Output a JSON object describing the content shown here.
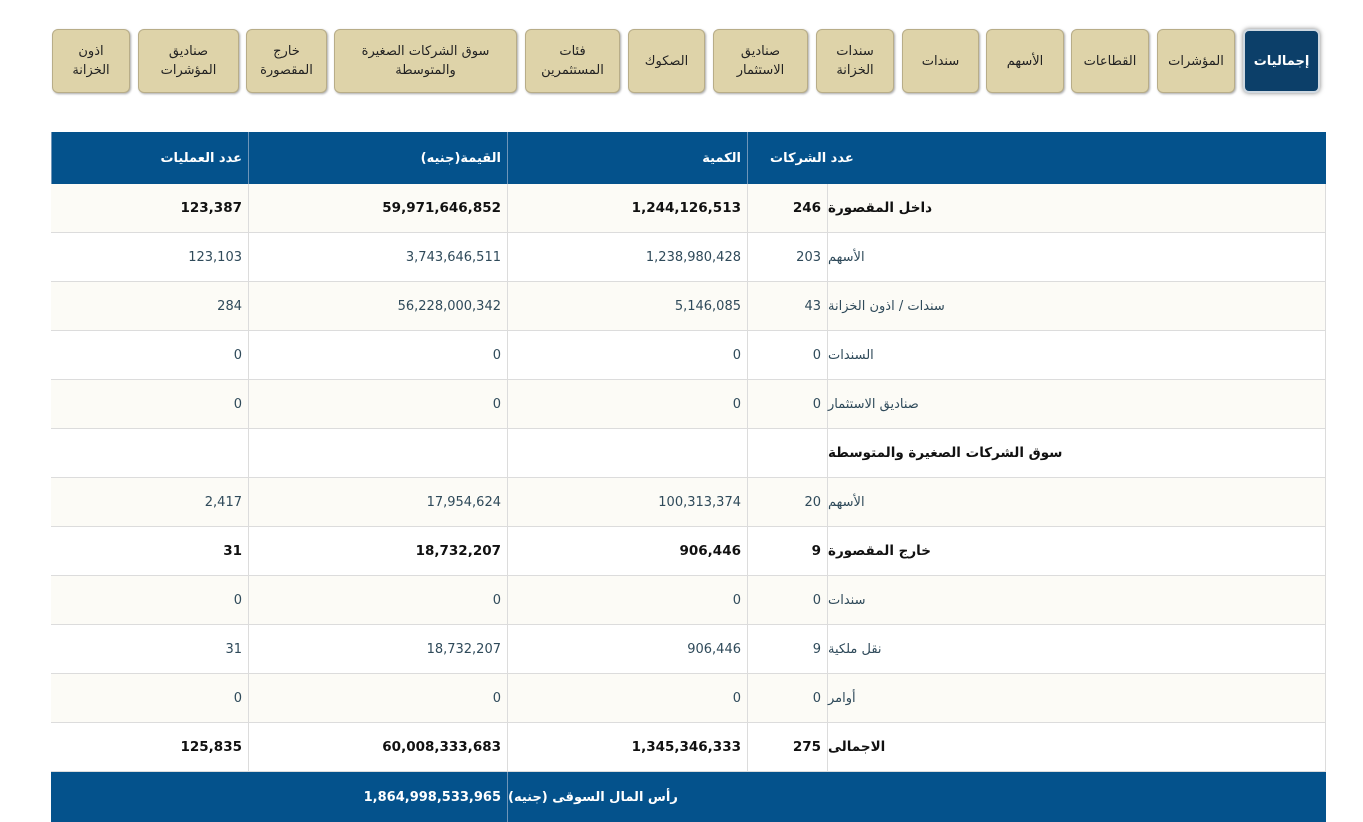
{
  "tabs": [
    {
      "label": "إجماليات",
      "active": true
    },
    {
      "label": "المؤشرات"
    },
    {
      "label": "القطاعات"
    },
    {
      "label": "الأسهم"
    },
    {
      "label": "سندات"
    },
    {
      "label": "سندات\nالخزانة"
    },
    {
      "label": "صناديق\nالاستثمار"
    },
    {
      "label": "الصكوك"
    },
    {
      "label": "فئات\nالمستثمرين"
    },
    {
      "label": "سوق الشركات الصغيرة\nوالمتوسطة"
    },
    {
      "label": "خارج\nالمقصورة"
    },
    {
      "label": "صناديق\nالمؤشرات"
    },
    {
      "label": "اذون\nالخزانة"
    }
  ],
  "table": {
    "headers": {
      "count": "عدد الشركات",
      "quantity": "الكمية",
      "value": "القيمة(جنيه)",
      "operations": "عدد العمليات"
    },
    "rows": [
      {
        "name": "داخل المقصورة",
        "count": "246",
        "quantity": "1,244,126,513",
        "value": "59,971,646,852",
        "operations": "123,387",
        "type": "bold"
      },
      {
        "name": "الأسهم",
        "count": "203",
        "quantity": "1,238,980,428",
        "value": "3,743,646,511",
        "operations": "123,103",
        "type": "sub"
      },
      {
        "name": "سندات / اذون الخزانة",
        "count": "43",
        "quantity": "5,146,085",
        "value": "56,228,000,342",
        "operations": "284",
        "type": "sub"
      },
      {
        "name": "السندات",
        "count": "0",
        "quantity": "0",
        "value": "0",
        "operations": "0",
        "type": "sub"
      },
      {
        "name": "صناديق الاستثمار",
        "count": "0",
        "quantity": "0",
        "value": "0",
        "operations": "0",
        "type": "sub"
      },
      {
        "name": "سوق الشركات الصغيرة والمتوسطة",
        "count": "",
        "quantity": "",
        "value": "",
        "operations": "",
        "type": "bold"
      },
      {
        "name": "الأسهم",
        "count": "20",
        "quantity": "100,313,374",
        "value": "17,954,624",
        "operations": "2,417",
        "type": "sub"
      },
      {
        "name": "خارج المقصورة",
        "count": "9",
        "quantity": "906,446",
        "value": "18,732,207",
        "operations": "31",
        "type": "bold"
      },
      {
        "name": "سندات",
        "count": "0",
        "quantity": "0",
        "value": "0",
        "operations": "0",
        "type": "sub"
      },
      {
        "name": "نقل ملكية",
        "count": "9",
        "quantity": "906,446",
        "value": "18,732,207",
        "operations": "31",
        "type": "sub"
      },
      {
        "name": "أوامر",
        "count": "0",
        "quantity": "0",
        "value": "0",
        "operations": "0",
        "type": "sub"
      },
      {
        "name": "الاجمالى",
        "count": "275",
        "quantity": "1,345,346,333",
        "value": "60,008,333,683",
        "operations": "125,835",
        "type": "bold"
      }
    ],
    "footer": {
      "label": "رأس المال السوقى (جنيه)",
      "value": "1,864,998,533,965"
    }
  },
  "colors": {
    "header_blue": "#04528c",
    "active_tab": "#0c3f69",
    "tab_tan": "#ded3a9"
  }
}
